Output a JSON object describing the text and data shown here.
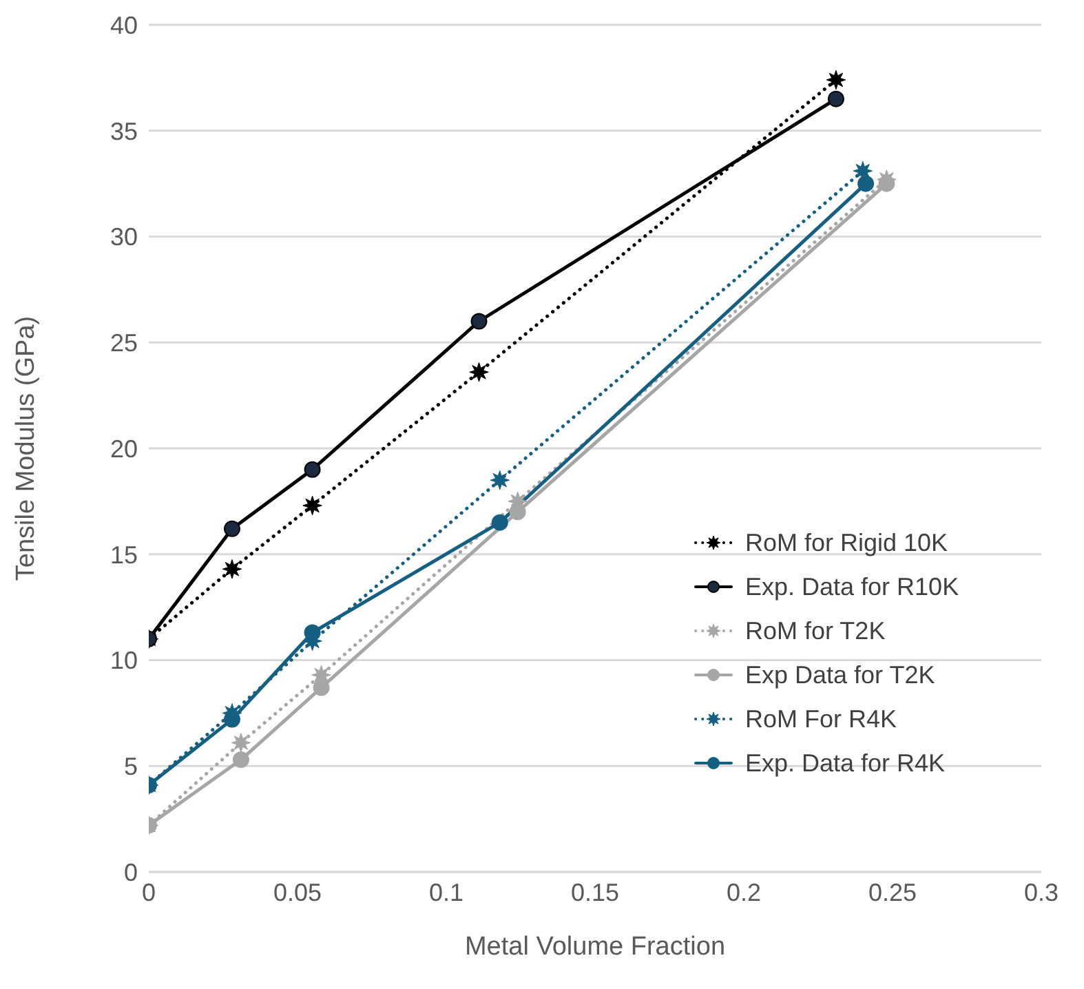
{
  "chart_data": {
    "type": "line",
    "xlabel": "Metal Volume Fraction",
    "ylabel": "Tensile Modulus (GPa)",
    "xlim": [
      0,
      0.3
    ],
    "xticks": [
      0,
      0.05,
      0.1,
      0.15,
      0.2,
      0.25,
      0.3
    ],
    "ylim": [
      0,
      40
    ],
    "yticks": [
      0,
      5,
      10,
      15,
      20,
      25,
      30,
      35,
      40
    ],
    "grid": "y",
    "legend": "right",
    "series": [
      {
        "name": "RoM for Rigid 10K",
        "color": "#000000",
        "marker": "star",
        "line_style": "dotted",
        "x": [
          0,
          0.028,
          0.055,
          0.111,
          0.231
        ],
        "values": [
          11.0,
          14.3,
          17.3,
          23.6,
          37.4
        ]
      },
      {
        "name": "Exp. Data for R10K",
        "color": "#000000",
        "marker": "circle",
        "line_style": "solid",
        "x": [
          0,
          0.028,
          0.055,
          0.111,
          0.231
        ],
        "values": [
          11.0,
          16.2,
          19.0,
          26.0,
          36.5
        ]
      },
      {
        "name": "RoM for T2K",
        "color": "#a6a6a6",
        "marker": "star",
        "line_style": "dotted",
        "x": [
          0,
          0.031,
          0.058,
          0.124,
          0.248
        ],
        "values": [
          2.2,
          6.1,
          9.3,
          17.5,
          32.7
        ]
      },
      {
        "name": "Exp Data for T2K",
        "color": "#a6a6a6",
        "marker": "circle",
        "line_style": "solid",
        "x": [
          0,
          0.031,
          0.058,
          0.124,
          0.248
        ],
        "values": [
          2.2,
          5.3,
          8.7,
          17.0,
          32.5
        ]
      },
      {
        "name": "RoM For R4K",
        "color": "#156082",
        "marker": "star",
        "line_style": "dotted",
        "x": [
          0,
          0.028,
          0.055,
          0.118,
          0.24
        ],
        "values": [
          4.1,
          7.5,
          10.9,
          18.5,
          33.1
        ]
      },
      {
        "name": "Exp. Data for R4K",
        "color": "#156082",
        "marker": "circle",
        "line_style": "solid",
        "x": [
          0,
          0.028,
          0.055,
          0.118,
          0.241
        ],
        "values": [
          4.1,
          7.2,
          11.3,
          16.5,
          32.5
        ]
      }
    ]
  }
}
